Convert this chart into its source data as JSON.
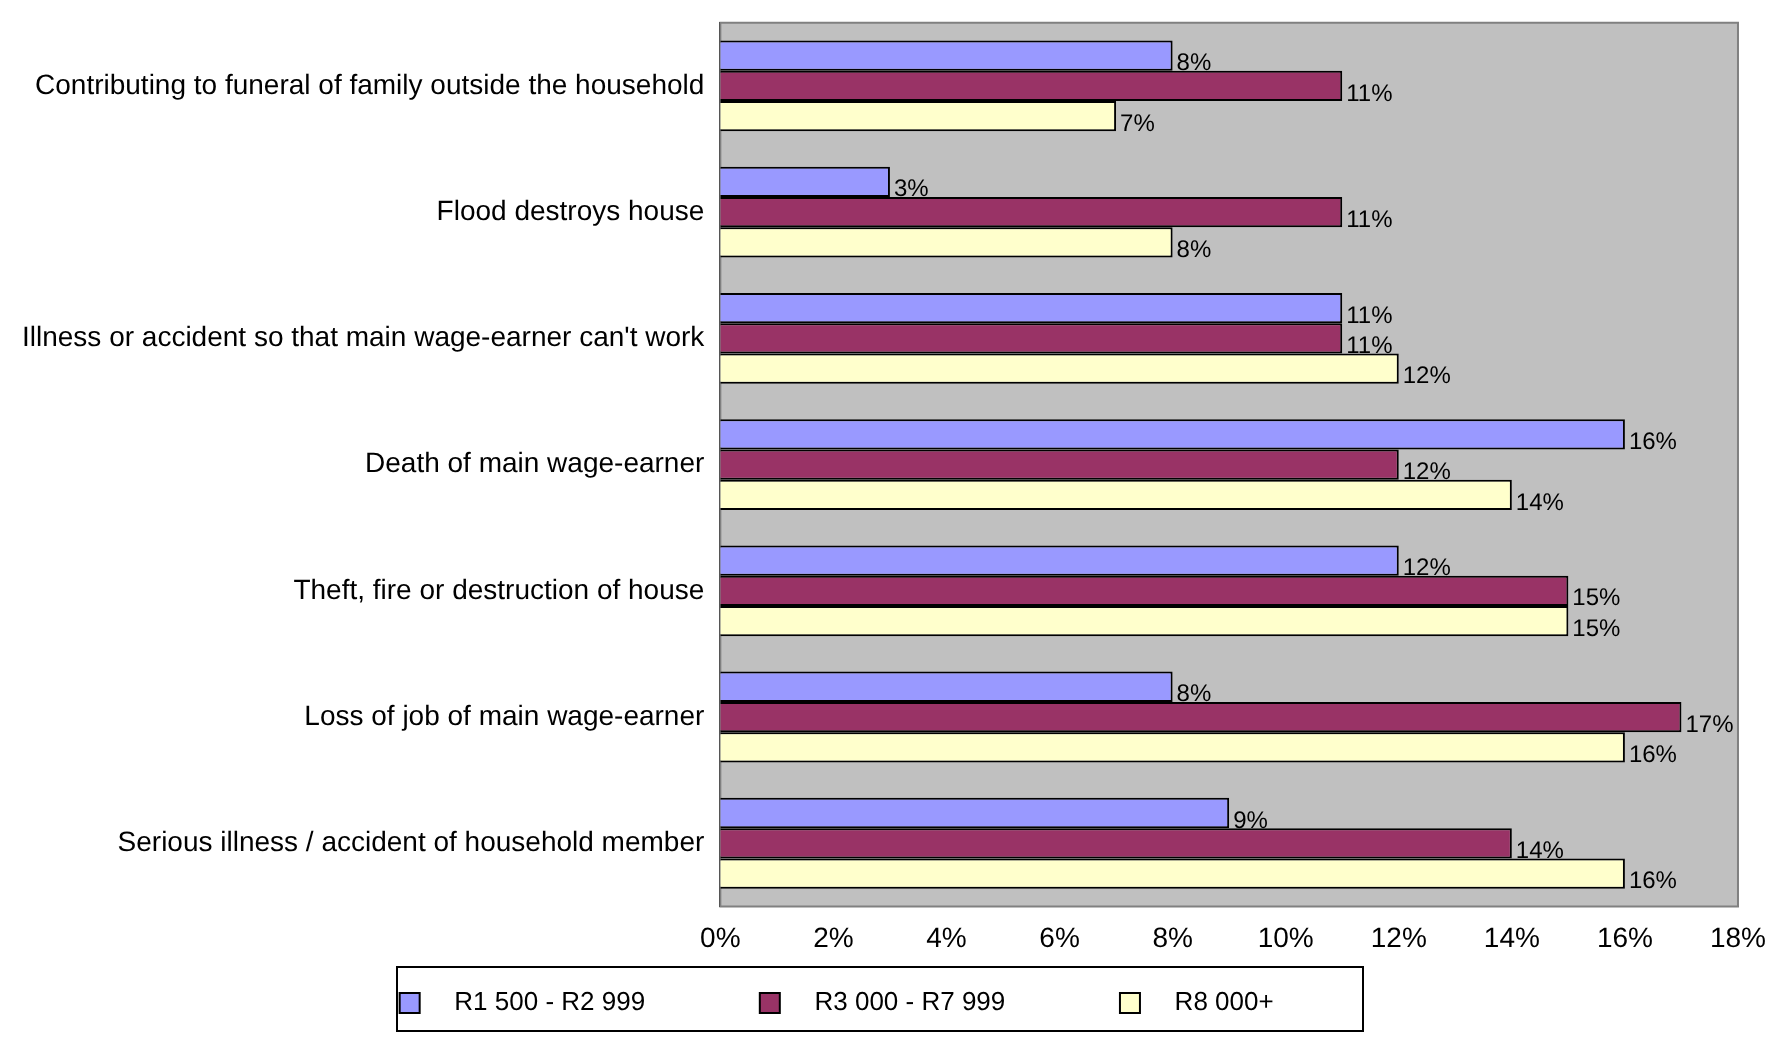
{
  "chart_data": {
    "type": "bar",
    "orientation": "horizontal",
    "categories": [
      "Contributing to funeral of family outside the household",
      "Flood destroys house",
      "Illness or accident so that main wage-earner can't work",
      "Death of main wage-earner",
      "Theft, fire or destruction of house",
      "Loss of job of main wage-earner",
      "Serious illness / accident of household member"
    ],
    "series": [
      {
        "name": "R1 500 - R2 999",
        "color": "#9999ff",
        "values": [
          8,
          3,
          11,
          16,
          12,
          8,
          9
        ],
        "value_labels": [
          "8%",
          "3%",
          "11%",
          "16%",
          "12%",
          "8%",
          "9%"
        ]
      },
      {
        "name": "R3 000 - R7 999",
        "color": "#993366",
        "values": [
          11,
          11,
          11,
          12,
          15,
          17,
          14
        ],
        "value_labels": [
          "11%",
          "11%",
          "11%",
          "12%",
          "15%",
          "17%",
          "14%"
        ]
      },
      {
        "name": "R8 000+",
        "color": "#ffffcc",
        "values": [
          7,
          8,
          12,
          14,
          15,
          16,
          16
        ],
        "value_labels": [
          "7%",
          "8%",
          "12%",
          "14%",
          "15%",
          "16%",
          "16%"
        ]
      }
    ],
    "xlim": [
      0,
      18
    ],
    "xticks": [
      {
        "value": 0,
        "label": "0%"
      },
      {
        "value": 2,
        "label": "2%"
      },
      {
        "value": 4,
        "label": "4%"
      },
      {
        "value": 6,
        "label": "6%"
      },
      {
        "value": 8,
        "label": "8%"
      },
      {
        "value": 10,
        "label": "10%"
      },
      {
        "value": 12,
        "label": "12%"
      },
      {
        "value": 14,
        "label": "14%"
      },
      {
        "value": 16,
        "label": "16%"
      },
      {
        "value": 18,
        "label": "18%"
      }
    ],
    "grid": false,
    "legend": "bottom"
  }
}
